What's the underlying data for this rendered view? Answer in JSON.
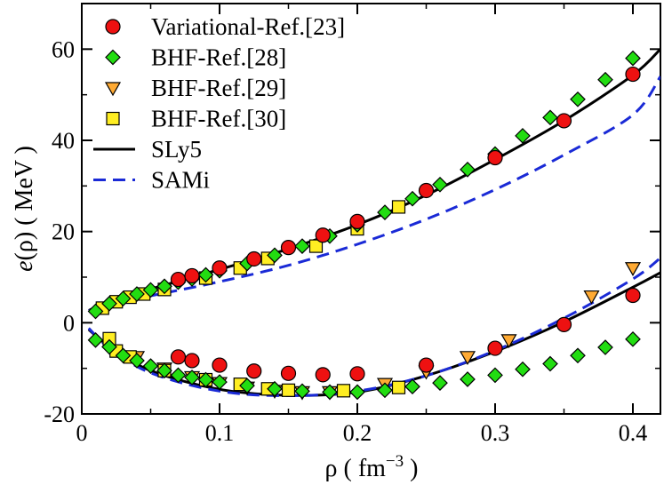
{
  "chart_data": {
    "type": "scatter",
    "xlabel": "ρ  ( fm",
    "xlabel_sup": "−3",
    "xlabel_close": " )",
    "ylabel_italic": "e",
    "ylabel_rest": "(ρ)  ( MeV )",
    "xlim": [
      0,
      0.42
    ],
    "ylim": [
      -20,
      70
    ],
    "xticks": [
      0,
      0.1,
      0.2,
      0.3,
      0.4
    ],
    "xtick_labels": [
      "0",
      "0.1",
      "0.2",
      "0.3",
      "0.4"
    ],
    "yticks": [
      -20,
      0,
      20,
      40,
      60
    ],
    "ytick_labels": [
      "-20",
      "0",
      "20",
      "40",
      "60"
    ],
    "series": [
      {
        "name": "Variational-Ref.[23]",
        "marker": "circle",
        "color": "#ee1111",
        "neutron_matter": {
          "x": [
            0.07,
            0.08,
            0.1,
            0.125,
            0.15,
            0.175,
            0.2,
            0.25,
            0.3,
            0.35,
            0.4
          ],
          "y": [
            9.5,
            10.3,
            12.0,
            14.0,
            16.5,
            19.2,
            22.2,
            29.0,
            36.2,
            44.3,
            54.5
          ]
        },
        "symmetric_matter": {
          "x": [
            0.07,
            0.08,
            0.1,
            0.125,
            0.15,
            0.175,
            0.2,
            0.25,
            0.3,
            0.35,
            0.4
          ],
          "y": [
            -7.5,
            -8.3,
            -9.3,
            -10.6,
            -11.1,
            -11.4,
            -11.2,
            -9.3,
            -5.6,
            -0.4,
            6.0
          ]
        }
      },
      {
        "name": "BHF-Ref.[28]",
        "marker": "diamond",
        "color": "#22dd11",
        "neutron_matter": {
          "x": [
            0.01,
            0.02,
            0.03,
            0.04,
            0.05,
            0.06,
            0.07,
            0.08,
            0.09,
            0.1,
            0.12,
            0.14,
            0.16,
            0.18,
            0.2,
            0.22,
            0.24,
            0.26,
            0.28,
            0.3,
            0.32,
            0.34,
            0.36,
            0.38,
            0.4
          ],
          "y": [
            2.5,
            4.2,
            5.3,
            6.3,
            7.2,
            8.0,
            8.9,
            9.6,
            10.5,
            11.4,
            13.0,
            14.8,
            16.8,
            19.0,
            21.5,
            24.2,
            27.2,
            30.3,
            33.6,
            37.0,
            41.0,
            45.0,
            49.0,
            53.3,
            58.0
          ]
        },
        "symmetric_matter": {
          "x": [
            0.01,
            0.02,
            0.03,
            0.04,
            0.05,
            0.06,
            0.07,
            0.08,
            0.09,
            0.1,
            0.12,
            0.14,
            0.16,
            0.18,
            0.2,
            0.22,
            0.24,
            0.26,
            0.28,
            0.3,
            0.32,
            0.34,
            0.36,
            0.38,
            0.4
          ],
          "y": [
            -3.8,
            -5.3,
            -7.2,
            -8.3,
            -9.5,
            -10.5,
            -11.5,
            -12.0,
            -12.5,
            -13.0,
            -13.8,
            -14.5,
            -15.0,
            -15.2,
            -15.2,
            -14.8,
            -14.0,
            -13.2,
            -12.4,
            -11.5,
            -10.2,
            -9.0,
            -7.2,
            -5.4,
            -3.6
          ]
        }
      },
      {
        "name": "BHF-Ref.[29]",
        "marker": "triangle-down",
        "color": "#ffaa33",
        "neutron_matter": {
          "x": [],
          "y": []
        },
        "symmetric_matter": {
          "x": [
            0.04,
            0.06,
            0.08,
            0.1,
            0.12,
            0.14,
            0.16,
            0.18,
            0.22,
            0.25,
            0.28,
            0.31,
            0.37,
            0.4
          ],
          "y": [
            -7.5,
            -10.0,
            -11.9,
            -13.2,
            -14.2,
            -14.9,
            -15.2,
            -15.2,
            -13.4,
            -10.7,
            -7.5,
            -3.8,
            5.8,
            12.0
          ]
        }
      },
      {
        "name": "BHF-Ref.[30]",
        "marker": "square",
        "color": "#ffee22",
        "neutron_matter": {
          "x": [
            0.015,
            0.025,
            0.035,
            0.045,
            0.06,
            0.09,
            0.115,
            0.135,
            0.17,
            0.2,
            0.23
          ],
          "y": [
            3.2,
            4.6,
            5.6,
            6.3,
            7.3,
            9.8,
            12.0,
            14.1,
            16.8,
            20.6,
            25.4
          ]
        },
        "symmetric_matter": {
          "x": [
            0.02,
            0.025,
            0.035,
            0.06,
            0.09,
            0.115,
            0.135,
            0.15,
            0.19,
            0.23
          ],
          "y": [
            -3.5,
            -6.2,
            -7.5,
            -10.5,
            -12.5,
            -13.5,
            -14.5,
            -14.8,
            -14.9,
            -14.2
          ]
        }
      },
      {
        "name": "SLy5",
        "line": "solid",
        "color": "#000000",
        "neutron_matter": {
          "x": [
            0.005,
            0.02,
            0.05,
            0.1,
            0.15,
            0.2,
            0.25,
            0.3,
            0.35,
            0.4,
            0.42
          ],
          "y": [
            2.7,
            4.7,
            7.4,
            11.7,
            16.2,
            21.5,
            28.0,
            35.8,
            44.3,
            54.3,
            60.0
          ]
        },
        "symmetric_matter": {
          "x": [
            0.005,
            0.02,
            0.05,
            0.1,
            0.15,
            0.2,
            0.25,
            0.3,
            0.35,
            0.4,
            0.42
          ],
          "y": [
            -1.5,
            -5.2,
            -10.5,
            -14.6,
            -15.9,
            -15.2,
            -11.6,
            -6.3,
            0.2,
            7.8,
            11.0
          ]
        }
      },
      {
        "name": "SAMi",
        "line": "dashed",
        "color": "#1a2ad6",
        "neutron_matter": {
          "x": [
            0.005,
            0.02,
            0.05,
            0.1,
            0.15,
            0.2,
            0.25,
            0.3,
            0.35,
            0.4,
            0.42
          ],
          "y": [
            2.6,
            4.0,
            5.9,
            9.0,
            12.6,
            17.2,
            22.7,
            29.2,
            36.8,
            45.6,
            54.0
          ]
        },
        "symmetric_matter": {
          "x": [
            0.005,
            0.02,
            0.05,
            0.1,
            0.15,
            0.2,
            0.25,
            0.3,
            0.35,
            0.4,
            0.42
          ],
          "y": [
            -1.2,
            -5.5,
            -11.0,
            -15.0,
            -16.0,
            -15.0,
            -11.6,
            -6.1,
            1.0,
            9.6,
            14.2
          ]
        }
      }
    ],
    "legend_position": "top-left"
  }
}
